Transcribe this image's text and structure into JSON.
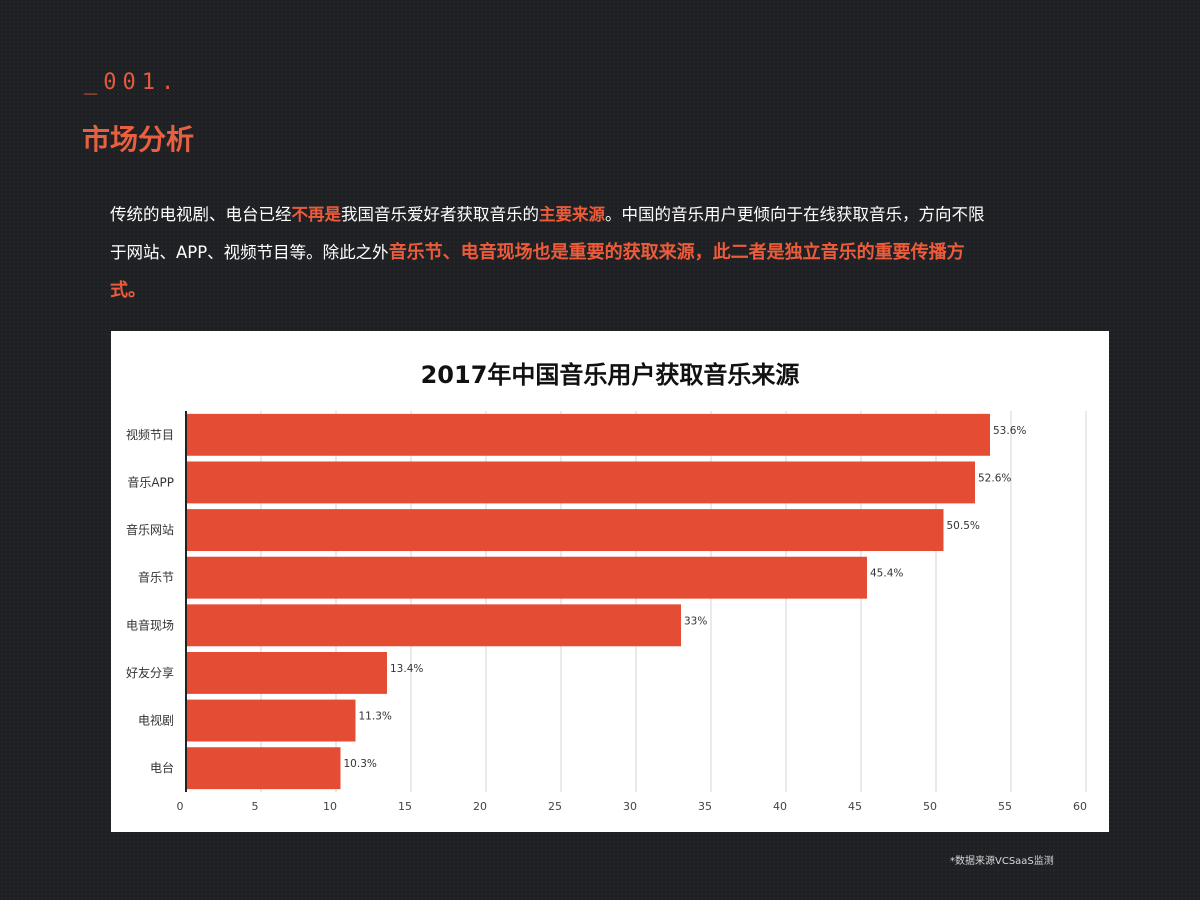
{
  "header": {
    "section_number": "_001.",
    "title": "市场分析"
  },
  "intro": {
    "p1": "传统的电视剧、电台已经",
    "h1": "不再是",
    "p2": "我国音乐爱好者获取音乐的",
    "h2": "主要来源",
    "p3": "。中国的音乐用户更倾向于在线获取音乐，方向不限于网站、APP、视频节目等。除此之外",
    "h3": "音乐节、电音现场也是重要的获取来源，此二者是独立音乐的重要传播方式。"
  },
  "chart_data": {
    "type": "bar",
    "orientation": "horizontal",
    "title": "2017年中国音乐用户获取音乐来源",
    "categories": [
      "视频节目",
      "音乐APP",
      "音乐网站",
      "音乐节",
      "电音现场",
      "好友分享",
      "电视剧",
      "电台"
    ],
    "values": [
      53.6,
      52.6,
      50.5,
      45.4,
      33,
      13.4,
      11.3,
      10.3
    ],
    "value_labels": [
      "53.6%",
      "52.6%",
      "50.5%",
      "45.4%",
      "33%",
      "13.4%",
      "11.3%",
      "10.3%"
    ],
    "xlim": [
      0,
      60
    ],
    "xticks": [
      0,
      5,
      10,
      15,
      20,
      25,
      30,
      35,
      40,
      45,
      50,
      55,
      60
    ],
    "xlabel": "",
    "ylabel": "",
    "grid": true,
    "bar_color": "#e44d34"
  },
  "footer": {
    "source": "*数据来源VCSaaS监测"
  }
}
